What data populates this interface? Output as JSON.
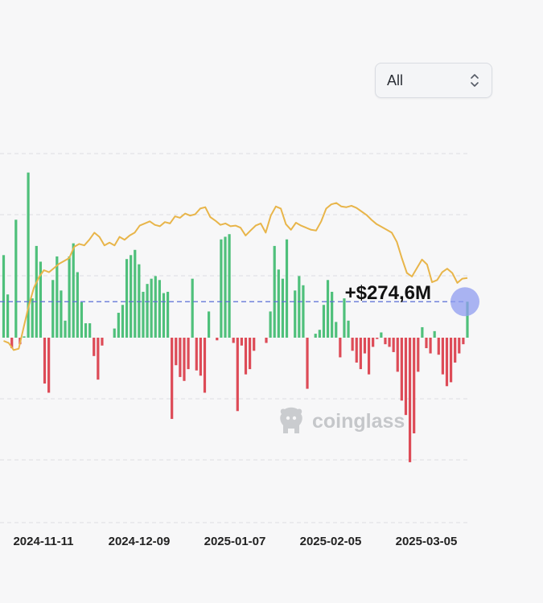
{
  "range_select": {
    "value": "All",
    "icon": "chevron-up-down-icon"
  },
  "watermark": {
    "text": "coinglass",
    "icon": "coinglass-logo-icon"
  },
  "colors": {
    "inflow": "#4fc07b",
    "outflow": "#dd4b57",
    "price_line": "#e8b54a",
    "reference_line": "#5b6fd6",
    "marker": "#8f9cf0",
    "grid": "#dcdde2",
    "axis_text": "#222222"
  },
  "chart_data": {
    "type": "bar",
    "title": "",
    "xlabel": "",
    "ylabel": "",
    "x_tick_labels": [
      "2024-11-11",
      "2024-12-09",
      "2025-01-07",
      "2025-02-05",
      "2025-03-05"
    ],
    "ylim": [
      -1000,
      1300
    ],
    "grid": true,
    "annotation": {
      "text": "+$274,6M",
      "value": 274.6,
      "unit": "M USD"
    },
    "series": [
      {
        "type": "bar",
        "values": [
          630,
          330,
          -80,
          900,
          -50,
          10,
          1260,
          300,
          700,
          580,
          -350,
          -420,
          440,
          620,
          360,
          130,
          620,
          720,
          500,
          270,
          110,
          110,
          -140,
          -320,
          -60,
          0,
          0,
          70,
          190,
          250,
          600,
          630,
          670,
          560,
          350,
          410,
          450,
          470,
          440,
          340,
          350,
          -620,
          -210,
          -300,
          -330,
          -240,
          450,
          -250,
          -290,
          -420,
          200,
          0,
          -20,
          750,
          770,
          790,
          -40,
          -560,
          -60,
          -280,
          -240,
          -100,
          0,
          0,
          -40,
          200,
          700,
          520,
          450,
          750,
          0,
          360,
          470,
          400,
          -390,
          0,
          30,
          60,
          250,
          440,
          350,
          120,
          -150,
          300,
          130,
          -100,
          -190,
          -240,
          -120,
          -280,
          -70,
          -10,
          40,
          -50,
          -70,
          -110,
          -260,
          -480,
          -590,
          -950,
          -730,
          -260,
          80,
          -80,
          -120,
          50,
          -130,
          -280,
          -370,
          -340,
          -190,
          -120,
          -50,
          274.6
        ]
      },
      {
        "type": "line",
        "values": [
          75,
          72,
          62,
          64,
          95,
          125,
          150,
          165,
          175,
          172,
          178,
          184,
          188,
          192,
          208,
          212,
          210,
          218,
          228,
          222,
          210,
          214,
          210,
          222,
          218,
          224,
          228,
          238,
          241,
          244,
          239,
          237,
          243,
          241,
          251,
          249,
          255,
          252,
          254,
          262,
          264,
          250,
          245,
          239,
          241,
          237,
          238,
          235,
          224,
          231,
          238,
          241,
          228,
          252,
          265,
          262,
          240,
          232,
          242,
          238,
          235,
          232,
          231,
          244,
          262,
          268,
          270,
          265,
          264,
          266,
          263,
          258,
          253,
          246,
          240,
          236,
          232,
          228,
          215,
          192,
          171,
          166,
          178,
          190,
          183,
          158,
          161,
          172,
          177,
          171,
          157,
          163,
          164
        ]
      }
    ]
  }
}
